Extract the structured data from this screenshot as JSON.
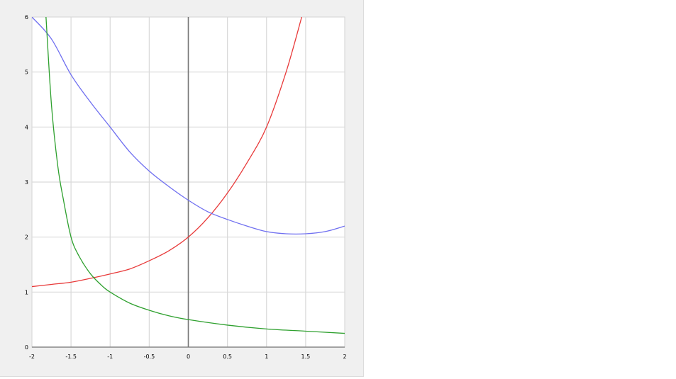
{
  "chart_data": {
    "type": "line",
    "title": "",
    "xlabel": "",
    "ylabel": "",
    "xlim": [
      -2,
      2
    ],
    "ylim": [
      0,
      6
    ],
    "grid": true,
    "x_ticks": [
      "-2",
      "-1.5",
      "-1",
      "-0.5",
      "0",
      "0.5",
      "1",
      "1.5",
      "2"
    ],
    "y_ticks": [
      "0",
      "1",
      "2",
      "3",
      "4",
      "5",
      "6"
    ],
    "series": [
      {
        "color": "#e83a3a",
        "x": [
          -2,
          -1.75,
          -1.5,
          -1.25,
          -1,
          -0.75,
          -0.5,
          -0.25,
          0,
          0.25,
          0.5,
          0.75,
          1,
          1.25,
          1.45
        ],
        "y": [
          1.1,
          1.14,
          1.18,
          1.25,
          1.33,
          1.42,
          1.57,
          1.75,
          2.0,
          2.35,
          2.8,
          3.35,
          4.0,
          5.0,
          6.0
        ]
      },
      {
        "color": "#6f6ff0",
        "x": [
          -2,
          -1.75,
          -1.5,
          -1.25,
          -1,
          -0.75,
          -0.5,
          -0.25,
          0,
          0.25,
          0.5,
          0.75,
          1,
          1.25,
          1.5,
          1.75,
          2
        ],
        "y": [
          6.0,
          5.6,
          4.95,
          4.45,
          4.0,
          3.55,
          3.2,
          2.92,
          2.67,
          2.46,
          2.32,
          2.2,
          2.1,
          2.06,
          2.06,
          2.1,
          2.2
        ]
      },
      {
        "color": "#2ea02e",
        "x": [
          -1.82,
          -1.75,
          -1.67,
          -1.6,
          -1.5,
          -1.4,
          -1.25,
          -1.1,
          -1,
          -0.75,
          -0.5,
          -0.25,
          0,
          0.5,
          1,
          1.5,
          2
        ],
        "y": [
          6.0,
          4.4,
          3.3,
          2.7,
          2.0,
          1.66,
          1.33,
          1.11,
          1.0,
          0.8,
          0.67,
          0.57,
          0.5,
          0.4,
          0.33,
          0.29,
          0.25
        ]
      }
    ]
  }
}
